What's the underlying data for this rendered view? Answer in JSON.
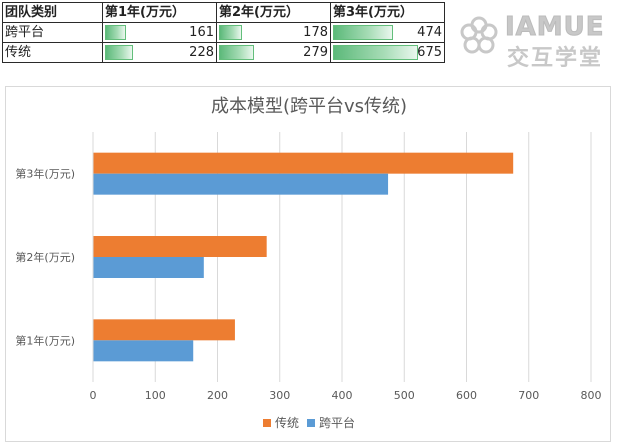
{
  "table": {
    "headers": [
      "团队类别",
      "第1年(万元）",
      "第2年(万元）",
      "第3年(万元）"
    ],
    "rows": [
      {
        "label": "跨平台",
        "values": [
          161,
          178,
          474
        ]
      },
      {
        "label": "传统",
        "values": [
          228,
          279,
          675
        ]
      }
    ],
    "bar_color": "#63be7b"
  },
  "logo": {
    "en": "IAMUE",
    "cn": "交互学堂"
  },
  "chart_data": {
    "type": "bar",
    "orientation": "horizontal",
    "title": "成本模型(跨平台vs传统)",
    "categories": [
      "第1年(万元)",
      "第2年(万元)",
      "第3年(万元)"
    ],
    "series": [
      {
        "name": "跨平台",
        "color": "#5b9bd5",
        "values": [
          161,
          178,
          474
        ]
      },
      {
        "name": "传统",
        "color": "#ed7d31",
        "values": [
          228,
          279,
          675
        ]
      }
    ],
    "xlim": [
      0,
      800
    ],
    "xticks": [
      0,
      100,
      200,
      300,
      400,
      500,
      600,
      700,
      800
    ],
    "grid": true,
    "legend": {
      "position": "bottom",
      "order": [
        "传统",
        "跨平台"
      ]
    }
  }
}
